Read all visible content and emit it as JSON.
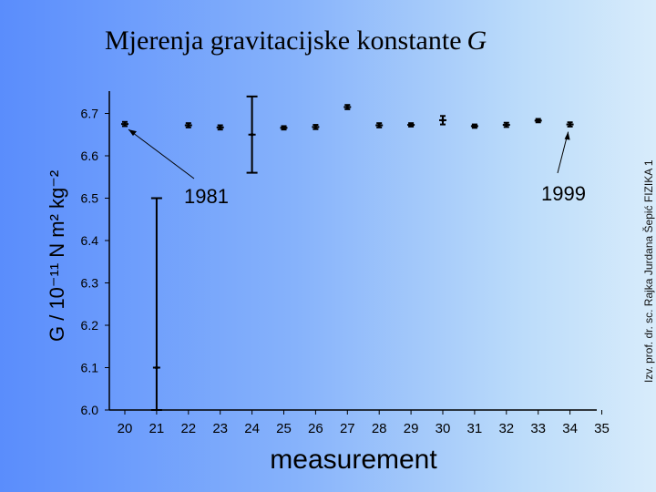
{
  "slide": {
    "title": "Mjerenja gravitacijske konstante",
    "title_symbol": "G",
    "side_text": "Izv. prof. dr. sc. Rajka Jurdana Šepić     FIZIKA 1"
  },
  "chart_data": {
    "type": "scatter",
    "xlabel": "measurement",
    "ylabel": "G / 10⁻¹¹ N m² kg⁻²",
    "xlim": [
      19.5,
      35
    ],
    "ylim": [
      6.0,
      6.8
    ],
    "x_ticks": [
      "20",
      "21",
      "22",
      "23",
      "24",
      "25",
      "26",
      "27",
      "28",
      "29",
      "30",
      "31",
      "32",
      "33",
      "34",
      "35"
    ],
    "y_ticks": [
      "6.0",
      "6.1",
      "6.2",
      "6.3",
      "6.4",
      "6.5",
      "6.6",
      "6.7"
    ],
    "series": [
      {
        "x": [
          20,
          21,
          22,
          23,
          24,
          25,
          26,
          27,
          28,
          29,
          30,
          31,
          32,
          33,
          34
        ],
        "y": [
          6.675,
          6.1,
          6.672,
          6.667,
          6.65,
          6.666,
          6.668,
          6.715,
          6.672,
          6.673,
          6.684,
          6.67,
          6.673,
          6.683,
          6.674
        ],
        "err": [
          0.005,
          0.4,
          0.005,
          0.005,
          0.09,
          0.004,
          0.005,
          0.005,
          0.005,
          0.004,
          0.01,
          0.004,
          0.005,
          0.004,
          0.005
        ]
      }
    ],
    "annotations": [
      {
        "text": "1981",
        "points_to_x": 20
      },
      {
        "text": "1999",
        "points_to_x": 34
      }
    ],
    "grid": false,
    "colors": {
      "marker": "#000000",
      "axis": "#000000"
    }
  }
}
